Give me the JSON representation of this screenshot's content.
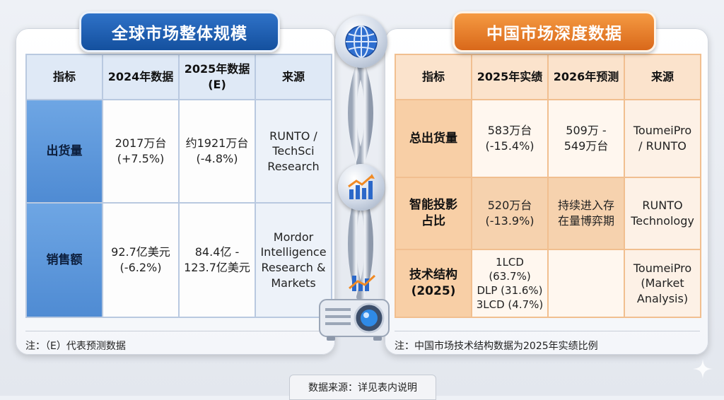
{
  "left": {
    "title": "全球市场整体规模",
    "headers": [
      "指标",
      "2024年数据",
      "2025年数据\n(E)",
      "来源"
    ],
    "rows": [
      {
        "label": "出货量",
        "col1": "2017万台\n(+7.5%)",
        "col2": "约1921万台\n(-4.8%)",
        "source": "RUNTO /\nTechSci\nResearch"
      },
      {
        "label": "销售额",
        "col1": "92.7亿美元\n(-6.2%)",
        "col2": "84.4亿 -\n123.7亿美元",
        "source": "Mordor\nIntelligence\nResearch &\nMarkets"
      }
    ],
    "note": "注：（E）代表预测数据"
  },
  "right": {
    "title": "中国市场深度数据",
    "headers": [
      "指标",
      "2025年实绩",
      "2026年预测",
      "来源"
    ],
    "rows": [
      {
        "label": "总出货量",
        "col1": "583万台\n(-15.4%)",
        "col2": "509万 -\n549万台",
        "source": "ToumeiPro\n/ RUNTO"
      },
      {
        "label": "智能投影\n占比",
        "col1": "520万台\n(-13.9%)",
        "col2": "持续进入存\n在量博弈期",
        "source": "RUNTO\nTechnology"
      },
      {
        "label": "技术结构\n(2025)",
        "col1": "1LCD (63.7%)\nDLP (31.6%)\n3LCD (4.7%)",
        "col2": "",
        "source": "ToumeiPro\n(Market\nAnalysis)"
      }
    ],
    "note": "注：中国市场技术结构数据为2025年实绩比例"
  },
  "footer": "数据来源：详见表内说明",
  "icons": [
    "globe-icon",
    "growth-chart-icon",
    "projector-icon",
    "sparkle-icon"
  ]
}
